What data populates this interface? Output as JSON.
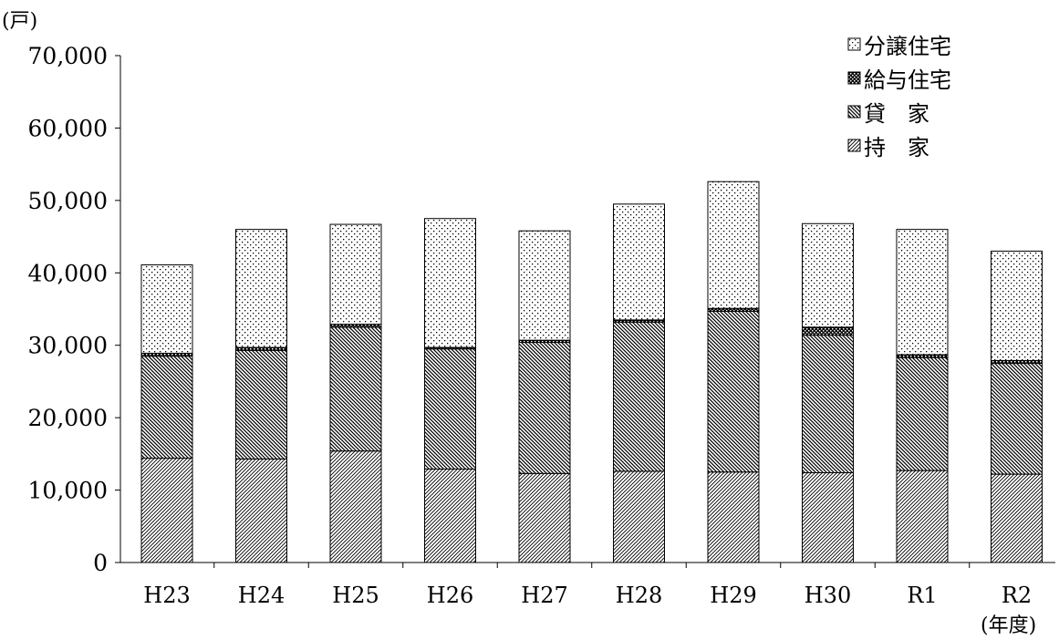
{
  "chart_data": {
    "type": "bar",
    "stacked": true,
    "y_unit_label": "(戸)",
    "x_unit_label": "(年度)",
    "ylim": [
      0,
      70000
    ],
    "y_ticks": [
      "0",
      "10,000",
      "20,000",
      "30,000",
      "40,000",
      "50,000",
      "60,000",
      "70,000"
    ],
    "y_tick_values": [
      0,
      10000,
      20000,
      30000,
      40000,
      50000,
      60000,
      70000
    ],
    "grid": false,
    "legend_position": "top-right",
    "categories": [
      "H23",
      "H24",
      "H25",
      "H26",
      "H27",
      "H28",
      "H29",
      "H30",
      "R1",
      "R2"
    ],
    "series": [
      {
        "name": "持　家",
        "pattern": "diag-fine",
        "values": [
          14400,
          14300,
          15400,
          12900,
          12300,
          12600,
          12500,
          12400,
          12700,
          12200
        ]
      },
      {
        "name": "貸　家",
        "pattern": "diag-dense",
        "values": [
          14100,
          15000,
          17100,
          16600,
          18100,
          20600,
          22200,
          19000,
          15600,
          15300
        ]
      },
      {
        "name": "給与住宅",
        "pattern": "checker",
        "values": [
          400,
          400,
          400,
          200,
          300,
          300,
          400,
          1100,
          400,
          400
        ]
      },
      {
        "name": "分譲住宅",
        "pattern": "dots",
        "values": [
          12200,
          16300,
          13800,
          17800,
          15100,
          16000,
          17500,
          14300,
          17300,
          15100
        ]
      }
    ],
    "legend_order": [
      "分譲住宅",
      "給与住宅",
      "貸　家",
      "持　家"
    ]
  }
}
